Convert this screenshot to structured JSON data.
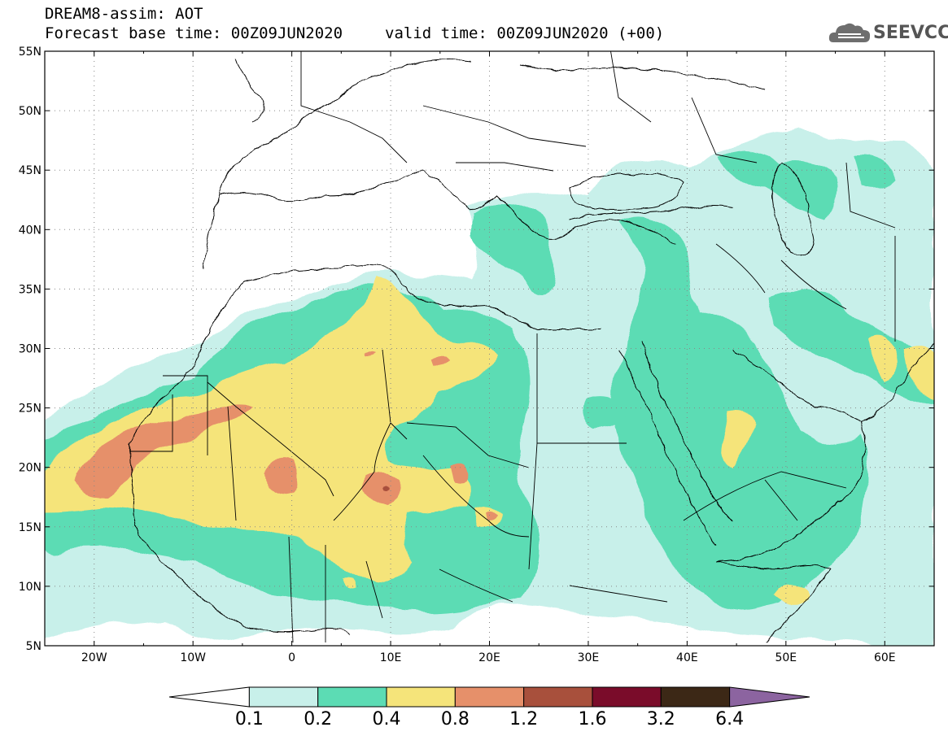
{
  "header": {
    "title": "DREAM8-assim: AOT",
    "base_time": "Forecast base time: 00Z09JUN2020",
    "valid_time": "valid time: 00Z09JUN2020 (+00)"
  },
  "logo": {
    "text": "SEEVCCC",
    "icon": "cloud-icon"
  },
  "map": {
    "type": "contour-map",
    "lon_range": [
      -25,
      65
    ],
    "lat_range": [
      5,
      55
    ],
    "grid": "dotted",
    "lat_labels": [
      "55N",
      "50N",
      "45N",
      "40N",
      "35N",
      "30N",
      "25N",
      "20N",
      "15N",
      "10N",
      "5N"
    ],
    "lon_labels": [
      "20W",
      "10W",
      "0",
      "10E",
      "20E",
      "30E",
      "40E",
      "50E",
      "60E"
    ],
    "colors": {
      "c1": "#c8f0ea",
      "c2": "#5cdcb4",
      "c3": "#f5e47a",
      "c4": "#e6906a",
      "c5": "#a8503c",
      "c6": "#7a0c2a",
      "c7": "#3c2816",
      "c8": "#8c64a0",
      "border": "#000000"
    }
  },
  "colorbar": {
    "levels": [
      "0.1",
      "0.2",
      "0.4",
      "0.8",
      "1.2",
      "1.6",
      "3.2",
      "6.4"
    ],
    "colors": [
      "#ffffff",
      "#c8f0ea",
      "#5cdcb4",
      "#f5e47a",
      "#e6906a",
      "#a8503c",
      "#7a0c2a",
      "#3c2816",
      "#8c64a0"
    ]
  }
}
